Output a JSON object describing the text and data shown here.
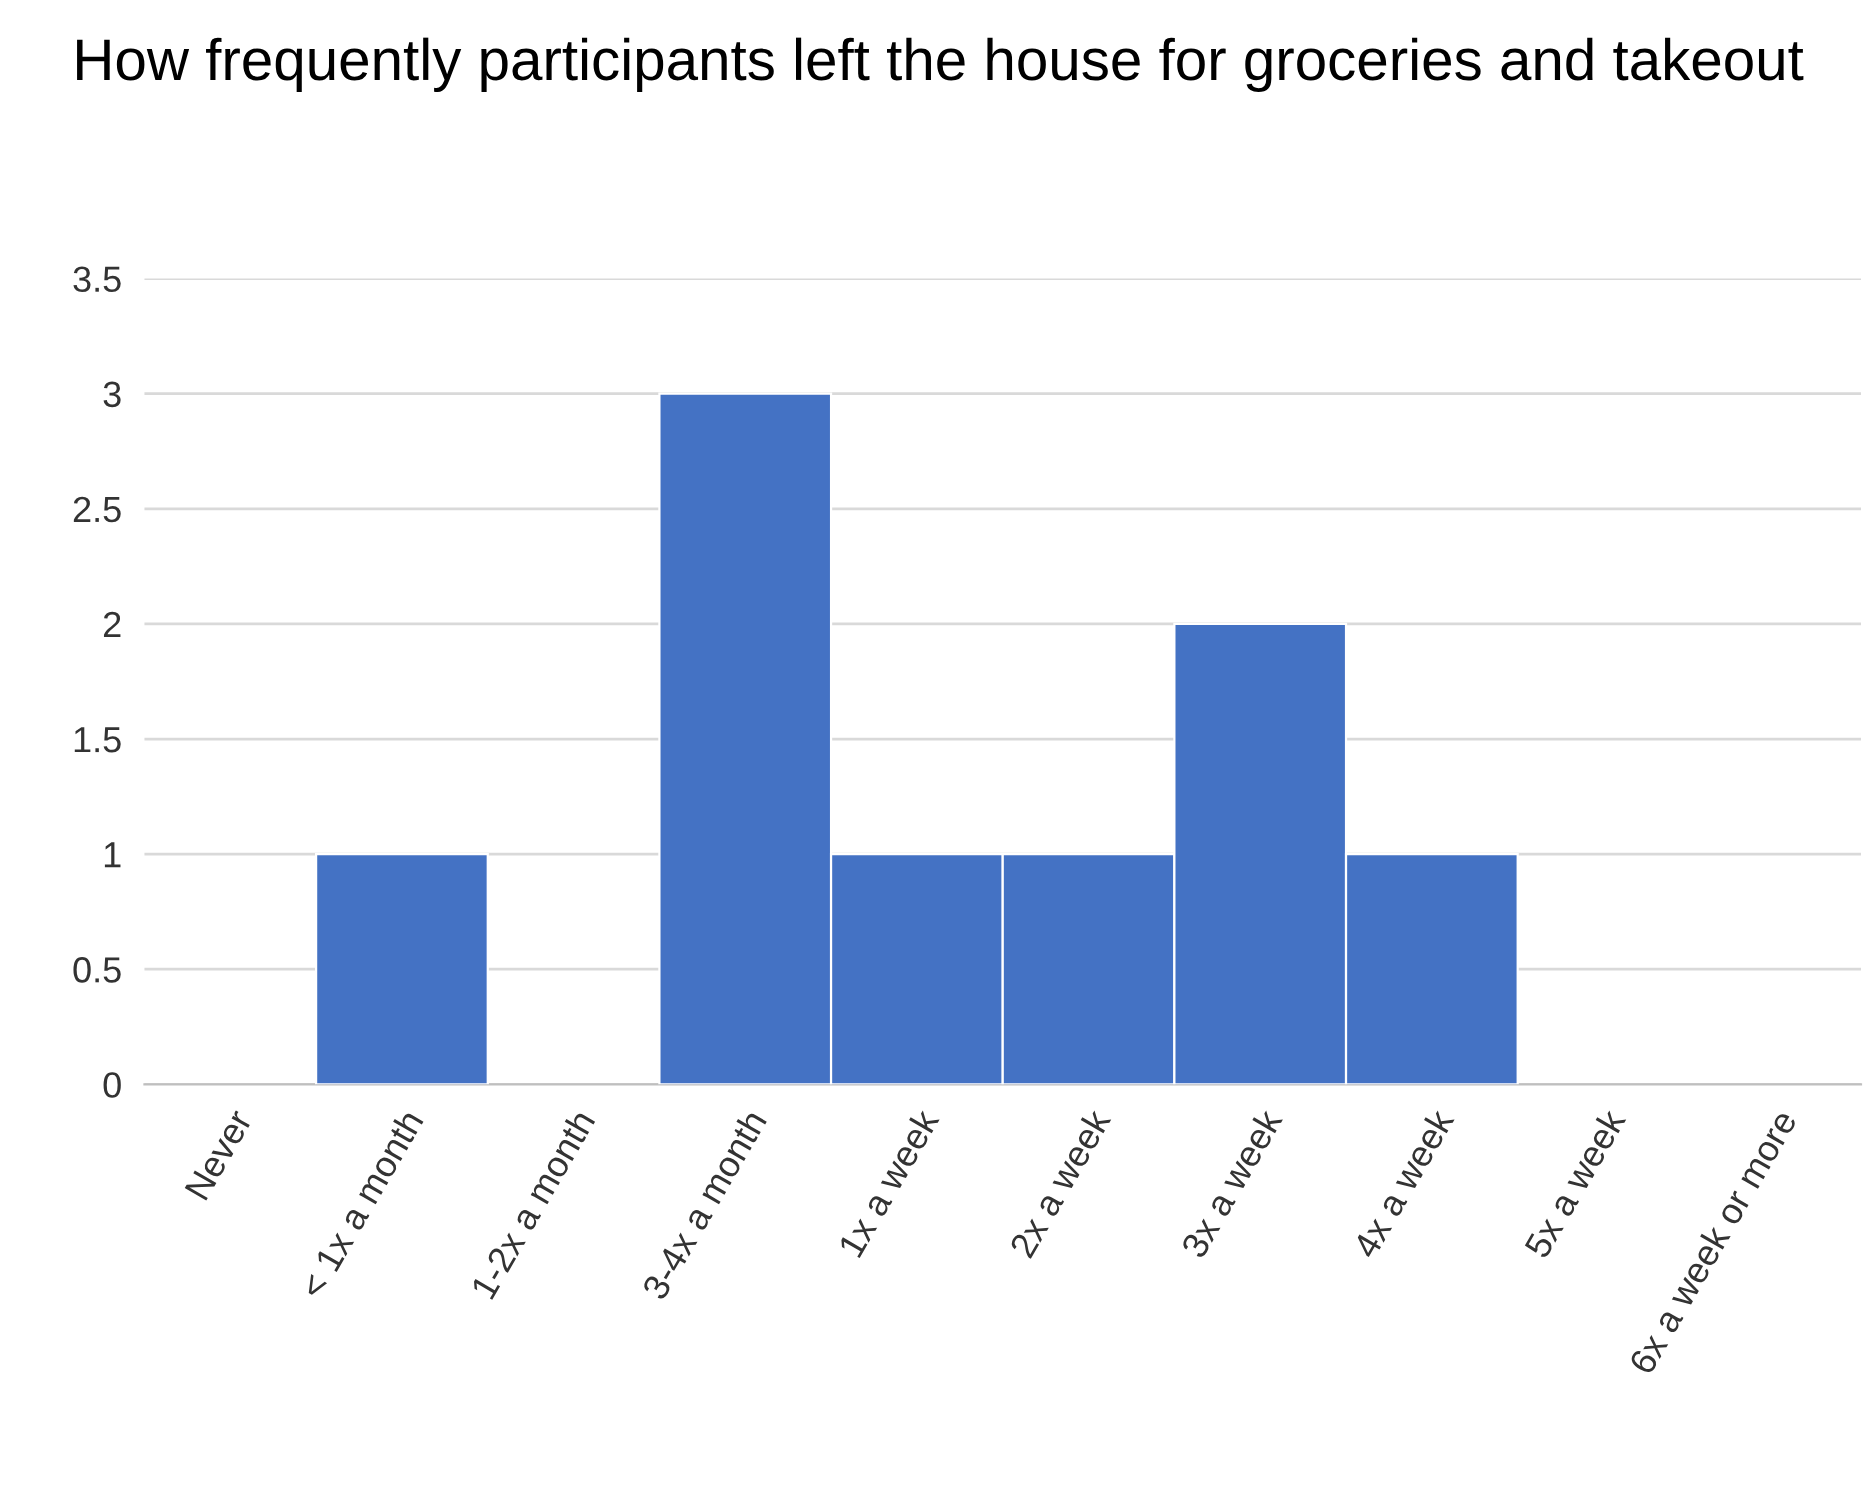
{
  "chart_data": {
    "type": "bar",
    "title": "How frequently participants left the house for groceries and takeout",
    "categories": [
      "Never",
      "< 1x a month",
      "1-2x a month",
      "3-4x a month",
      "1x a week",
      "2x a week",
      "3x a week",
      "4x a week",
      "5x a week",
      "6x a week or more"
    ],
    "values": [
      0,
      1,
      0,
      3,
      1,
      1,
      2,
      1,
      0,
      0
    ],
    "color": "#4472c4",
    "ylim": [
      0,
      3.5
    ],
    "yticks": [
      0,
      0.5,
      1,
      1.5,
      2,
      2.5,
      3,
      3.5
    ],
    "grid": "y"
  }
}
